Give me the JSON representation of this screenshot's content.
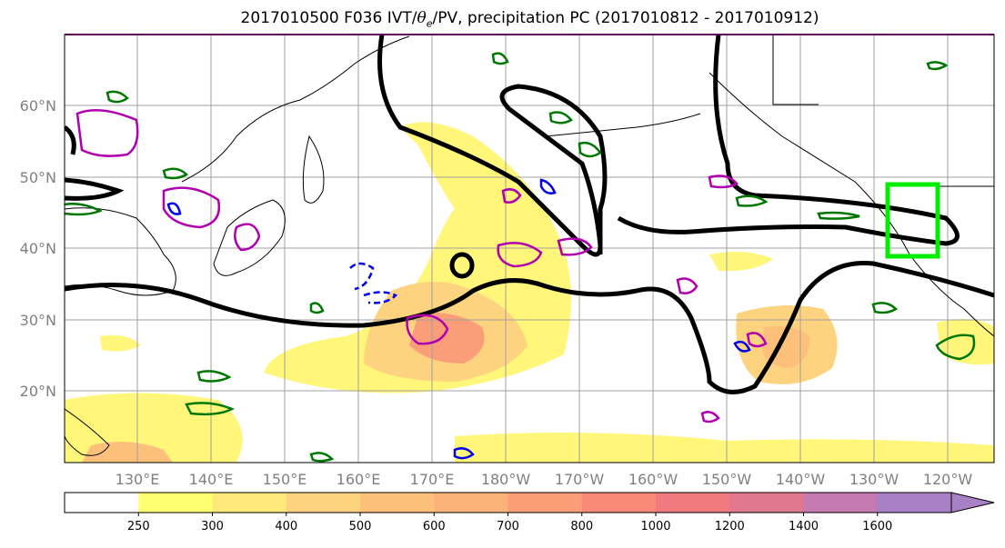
{
  "title": {
    "prefix": "2017010500 F036 IVT/",
    "theta_symbol": "θ",
    "theta_sub": "e",
    "suffix": "/PV, precipitation PC (2017010812 - 2017010912)"
  },
  "axes": {
    "lat_labels": [
      "60°N",
      "50°N",
      "40°N",
      "30°N",
      "20°N"
    ],
    "lon_labels": [
      "130°E",
      "140°E",
      "150°E",
      "160°E",
      "170°E",
      "180°W",
      "170°W",
      "160°W",
      "150°W",
      "140°W",
      "130°W",
      "120°W"
    ]
  },
  "colorbar": {
    "tick_labels": [
      "250",
      "300",
      "400",
      "500",
      "600",
      "700",
      "800",
      "1000",
      "1200",
      "1400",
      "1600"
    ],
    "colors": [
      "#ffff70",
      "#fee97a",
      "#fed37f",
      "#fdc07a",
      "#fcb379",
      "#fb9e78",
      "#f88878",
      "#f07a7e",
      "#e07890",
      "#c67ab2",
      "#a880c6"
    ],
    "extend": "max"
  },
  "map_style": {
    "ivt_shading": "yellow-red",
    "contour_colors": {
      "pv": "#000000",
      "theta_e_positive": "#b000b0",
      "theta_e_negative": "#0000ee",
      "precip": "#007700"
    },
    "highlight_box_color": "#00ee00"
  }
}
